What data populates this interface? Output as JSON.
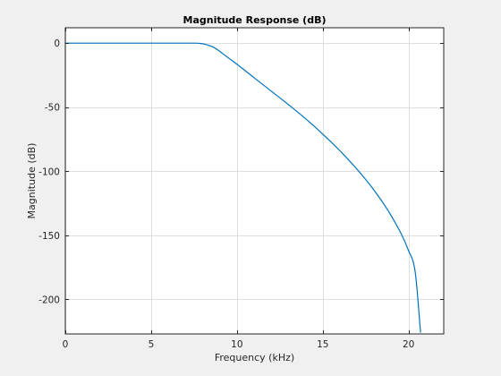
{
  "window": {
    "background": "#f0f0f0"
  },
  "chart_data": {
    "type": "line",
    "title": "Magnitude Response (dB)",
    "xlabel": "Frequency (kHz)",
    "ylabel": "Magnitude (dB)",
    "xlim": [
      0,
      22.05
    ],
    "ylim": [
      -227,
      12
    ],
    "grid": true,
    "x_ticks": [
      0,
      5,
      10,
      15,
      20
    ],
    "y_ticks": [
      0,
      -50,
      -100,
      -150,
      -200
    ],
    "x_tick_labels": [
      "0",
      "5",
      "10",
      "15",
      "20"
    ],
    "y_tick_labels": [
      "0",
      "-50",
      "-100",
      "-150",
      "-200"
    ],
    "series": [
      {
        "color": "#0072bd",
        "x": [
          0,
          2,
          4,
          6,
          7.5,
          8.0,
          8.3,
          8.6,
          8.9,
          9.2,
          9.6,
          10,
          11,
          12,
          13,
          14,
          15,
          16,
          17,
          18,
          19,
          20,
          20.4,
          20.7
        ],
        "y": [
          0,
          0,
          0,
          0,
          0,
          -0.5,
          -1.5,
          -3,
          -5.5,
          -8.5,
          -12.5,
          -16.5,
          -27,
          -37.5,
          -48,
          -59,
          -71,
          -84,
          -98.5,
          -115,
          -135,
          -162,
          -180,
          -226
        ]
      }
    ]
  }
}
